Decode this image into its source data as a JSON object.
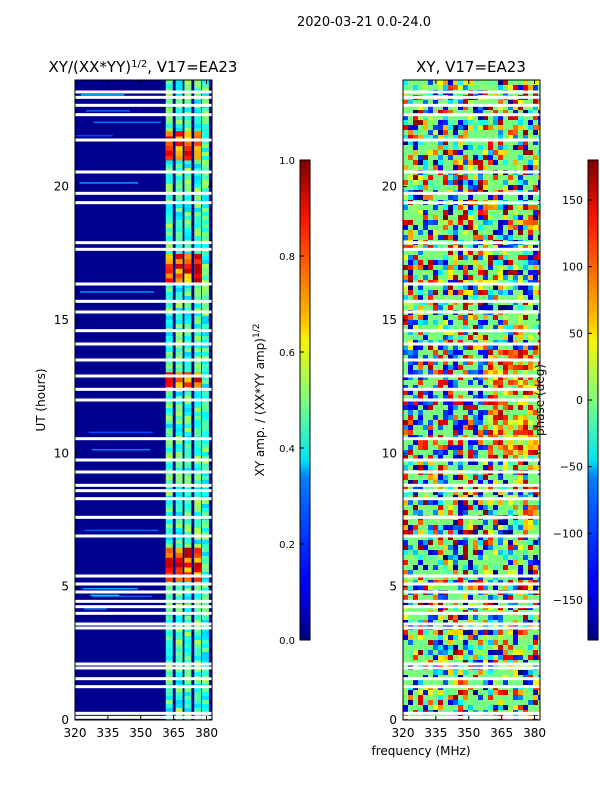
{
  "suptitle": "2020-03-21 0.0-24.0",
  "chart_data": [
    {
      "type": "heatmap",
      "title": "XY/(XX*YY)^1/2, V17=EA23",
      "title_main": "XY/(XX*YY)",
      "title_exp": "1/2",
      "title_tail": ", V17=EA23",
      "xlabel": "",
      "ylabel": "UT (hours)",
      "xlim": [
        320,
        382.5
      ],
      "ylim": [
        0,
        24
      ],
      "xticks": [
        320,
        335,
        350,
        365,
        380
      ],
      "yticks": [
        0,
        5,
        10,
        15,
        20
      ],
      "bright_channels_mhz": [
        363.0,
        367.5,
        371.5,
        376.0,
        379.5
      ],
      "colorbar": {
        "label": "XY amp. / (XX*YY amp)^1/2",
        "label_main": "XY amp. / (XX*YY amp)",
        "label_exp": "1/2",
        "range": [
          0.0,
          1.0
        ],
        "ticks": [
          "0.0",
          "0.2",
          "0.4",
          "0.6",
          "0.8",
          "1.0"
        ],
        "tick_values": [
          0.0,
          0.2,
          0.4,
          0.6,
          0.8,
          1.0
        ]
      }
    },
    {
      "type": "heatmap",
      "title": "XY, V17=EA23",
      "xlabel": "frequency (MHz)",
      "ylabel": "",
      "xlim": [
        320,
        382.5
      ],
      "ylim": [
        0,
        24
      ],
      "xticks": [
        320,
        335,
        350,
        365,
        380
      ],
      "yticks": [
        0,
        5,
        10,
        15,
        20
      ],
      "colorbar": {
        "label": "phase (deg)",
        "range": [
          -180,
          180
        ],
        "ticks": [
          "150",
          "100",
          "50",
          "0",
          "−50",
          "−100",
          "−150"
        ],
        "tick_values": [
          150,
          100,
          50,
          0,
          -50,
          -100,
          -150
        ]
      }
    }
  ],
  "gaps_ut_hours": [
    0.1,
    0.25,
    1.25,
    1.55,
    1.95,
    2.1,
    3.45,
    3.6,
    4.0,
    4.25,
    4.45,
    4.8,
    5.1,
    5.4,
    6.9,
    7.6,
    8.3,
    8.6,
    8.8,
    9.3,
    9.75,
    10.55,
    12.0,
    12.4,
    12.9,
    13.5,
    14.1,
    14.6,
    15.3,
    15.7,
    16.35,
    17.65,
    17.9,
    19.4,
    19.75,
    20.55,
    21.75,
    22.7,
    23.05,
    23.35,
    23.55
  ]
}
